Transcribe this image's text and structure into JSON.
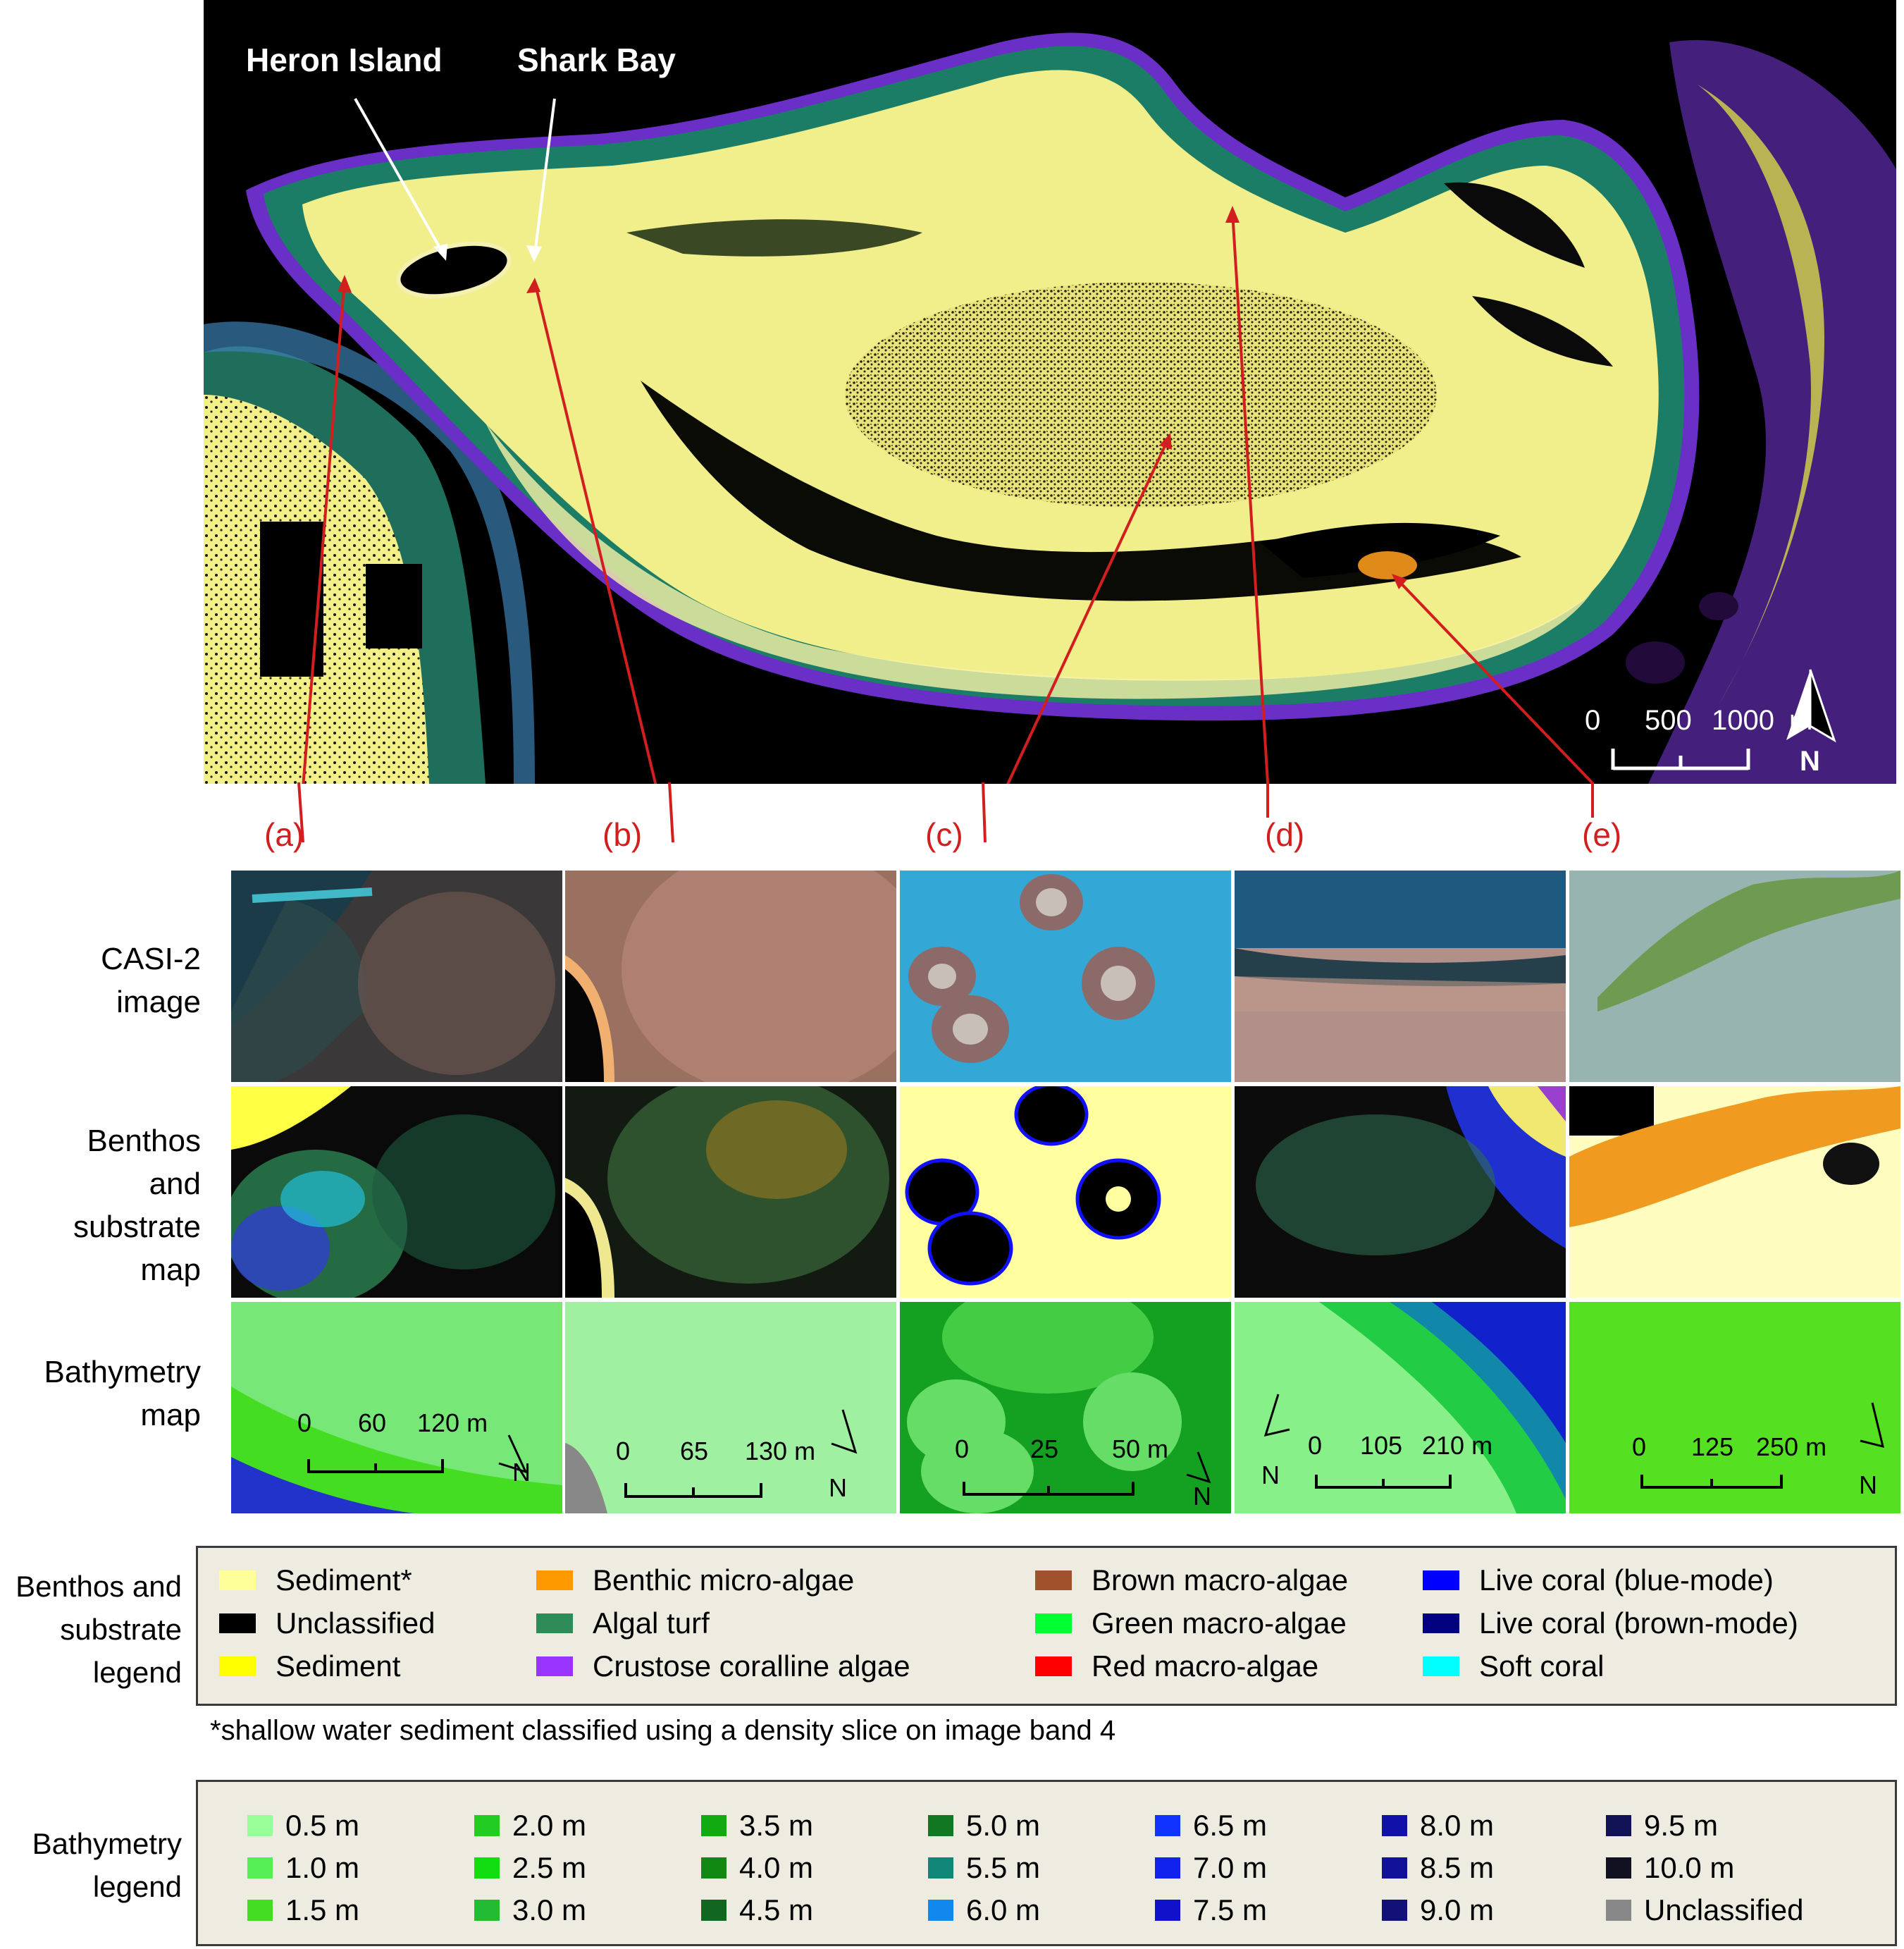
{
  "map": {
    "labels": {
      "heron_island": "Heron Island",
      "shark_bay": "Shark Bay"
    },
    "scale": {
      "tick0": "0",
      "tick1": "500",
      "tick2": "1000",
      "unit": "m",
      "north": "N"
    },
    "panel_letters": [
      "(a)",
      "(b)",
      "(c)",
      "(d)",
      "(e)"
    ],
    "colors": {
      "water": "#000000",
      "sediment": "#ffff99",
      "reef_edge": "#2e8b6e",
      "deep_purple": "#7b2fd1",
      "arrow_red": "#d21e1e"
    }
  },
  "rows": {
    "casi": "CASI-2 image",
    "casi_lines": [
      "CASI-2",
      "image"
    ],
    "benthos_lines": [
      "Benthos",
      "and",
      "substrate",
      "map"
    ],
    "bathy_lines": [
      "Bathymetry",
      "map"
    ]
  },
  "thumb_scales": [
    {
      "t0": "0",
      "t1": "60",
      "t2": "120 m",
      "north": "N"
    },
    {
      "t0": "0",
      "t1": "65",
      "t2": "130 m",
      "north": "N"
    },
    {
      "t0": "0",
      "t1": "25",
      "t2": "50 m",
      "north": "N"
    },
    {
      "t0": "0",
      "t1": "105",
      "t2": "210 m",
      "north": "N"
    },
    {
      "t0": "0",
      "t1": "125",
      "t2": "250 m",
      "north": "N"
    }
  ],
  "benthos_legend": {
    "title_lines": [
      "Benthos and",
      "substrate",
      "legend"
    ],
    "items": [
      {
        "label": "Sediment*",
        "color": "#ffff99"
      },
      {
        "label": "Unclassified",
        "color": "#000000"
      },
      {
        "label": "Sediment",
        "color": "#ffff00"
      },
      {
        "label": "Benthic micro-algae",
        "color": "#ff9900"
      },
      {
        "label": "Algal turf",
        "color": "#2e8b57"
      },
      {
        "label": "Crustose coralline algae",
        "color": "#9933ff"
      },
      {
        "label": "Brown macro-algae",
        "color": "#a0522d"
      },
      {
        "label": "Green macro-algae",
        "color": "#00ff33"
      },
      {
        "label": "Red macro-algae",
        "color": "#ff0000"
      },
      {
        "label": "Live coral (blue-mode)",
        "color": "#0000ff"
      },
      {
        "label": "Live coral (brown-mode)",
        "color": "#000080"
      },
      {
        "label": "Soft coral",
        "color": "#00ffff"
      }
    ],
    "note": "*shallow water sediment classified using  a density slice on image band 4"
  },
  "bathy_legend": {
    "title_lines": [
      "Bathymetry",
      "legend"
    ],
    "items": [
      {
        "label": "0.5 m",
        "color": "#99ff99"
      },
      {
        "label": "1.0 m",
        "color": "#55ee55"
      },
      {
        "label": "1.5 m",
        "color": "#44dd22"
      },
      {
        "label": "2.0 m",
        "color": "#22cc22"
      },
      {
        "label": "2.5 m",
        "color": "#11dd11"
      },
      {
        "label": "3.0 m",
        "color": "#22bb33"
      },
      {
        "label": "3.5 m",
        "color": "#11aa11"
      },
      {
        "label": "4.0 m",
        "color": "#118811"
      },
      {
        "label": "4.5 m",
        "color": "#116622"
      },
      {
        "label": "5.0 m",
        "color": "#117722"
      },
      {
        "label": "5.5 m",
        "color": "#118877"
      },
      {
        "label": "6.0 m",
        "color": "#1188ee"
      },
      {
        "label": "6.5 m",
        "color": "#1133ff"
      },
      {
        "label": "7.0 m",
        "color": "#1122ee"
      },
      {
        "label": "7.5 m",
        "color": "#1111cc"
      },
      {
        "label": "8.0 m",
        "color": "#1111aa"
      },
      {
        "label": "8.5 m",
        "color": "#111199"
      },
      {
        "label": "9.0 m",
        "color": "#111177"
      },
      {
        "label": "9.5 m",
        "color": "#111155"
      },
      {
        "label": "10.0 m",
        "color": "#111122"
      },
      {
        "label": "Unclassified",
        "color": "#888888"
      }
    ]
  }
}
